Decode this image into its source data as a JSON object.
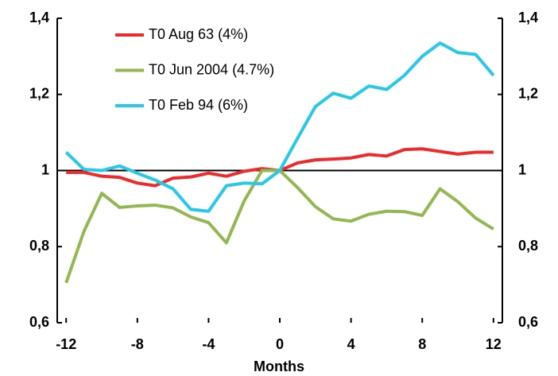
{
  "chart_data": {
    "type": "line",
    "x_label": "Months",
    "x": [
      -12,
      -11,
      -10,
      -9,
      -8,
      -7,
      -6,
      -5,
      -4,
      -3,
      -2,
      -1,
      0,
      1,
      2,
      3,
      4,
      5,
      6,
      7,
      8,
      9,
      10,
      11,
      12
    ],
    "series": [
      {
        "name": "T0 Aug 63 (4%)",
        "color": "#ee2a2a",
        "values": [
          0.995,
          0.995,
          0.985,
          0.982,
          0.967,
          0.96,
          0.98,
          0.983,
          0.993,
          0.985,
          0.998,
          1.005,
          1.0,
          1.02,
          1.028,
          1.03,
          1.033,
          1.042,
          1.038,
          1.055,
          1.057,
          1.05,
          1.043,
          1.048,
          1.048
        ]
      },
      {
        "name": "T0 Jun 2004 (4.7%)",
        "color": "#93b851",
        "values": [
          0.705,
          0.84,
          0.94,
          0.903,
          0.907,
          0.909,
          0.902,
          0.878,
          0.863,
          0.81,
          0.92,
          1.0,
          1.0,
          0.955,
          0.905,
          0.873,
          0.867,
          0.885,
          0.893,
          0.892,
          0.882,
          0.952,
          0.918,
          0.875,
          0.846
        ]
      },
      {
        "name": "T0 Feb 94 (6%)",
        "color": "#27c8e8",
        "values": [
          1.048,
          1.003,
          1.0,
          1.012,
          0.993,
          0.975,
          0.952,
          0.898,
          0.893,
          0.96,
          0.967,
          0.965,
          1.0,
          1.085,
          1.168,
          1.203,
          1.19,
          1.222,
          1.213,
          1.25,
          1.3,
          1.335,
          1.31,
          1.305,
          1.25
        ]
      }
    ],
    "xlim": [
      -12.5,
      12.5
    ],
    "xticks": [
      -12,
      -8,
      -4,
      0,
      4,
      8,
      12
    ],
    "ylim": [
      0.6,
      1.4
    ],
    "yticks": [
      {
        "value": 0.6,
        "label": "0,6"
      },
      {
        "value": 0.8,
        "label": "0,8"
      },
      1,
      {
        "value": 1.2,
        "label": "1,2"
      },
      {
        "value": 1.4,
        "label": "1,4"
      }
    ],
    "y2lim": [
      0.6,
      1.4
    ],
    "y2ticks": [
      {
        "value": 0.6,
        "label": "0,6"
      },
      {
        "value": 0.8,
        "label": "0,8"
      },
      1,
      {
        "value": 1.2,
        "label": "1,2"
      },
      {
        "value": 1.4,
        "label": "1,4"
      }
    ],
    "hline": 1,
    "legend": "top-left",
    "grid": false
  }
}
